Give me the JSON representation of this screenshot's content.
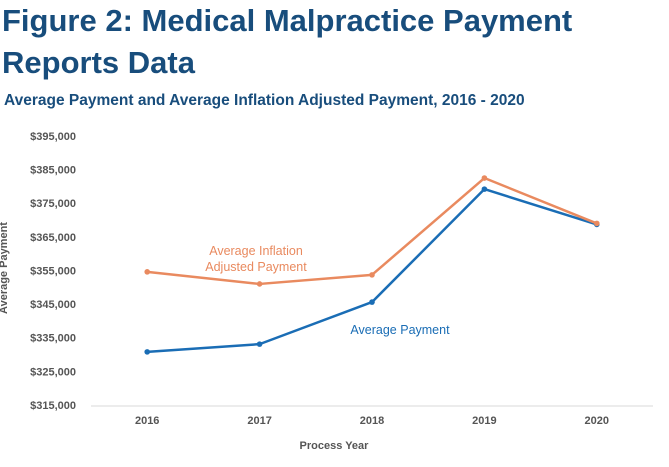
{
  "chart_data": {
    "type": "line",
    "title": "Figure 2: Medical Malpractice Payment Reports Data",
    "subtitle": "Average Payment and Average Inflation Adjusted Payment, 2016 - 2020",
    "x_label": "Process Year",
    "y_label": "Average Payment",
    "categories": [
      "2016",
      "2017",
      "2018",
      "2019",
      "2020"
    ],
    "series": [
      {
        "name": "Average Payment",
        "color": "#1a6db5",
        "values": [
          331100,
          333400,
          345900,
          379500,
          369000
        ]
      },
      {
        "name": "Average Inflation Adjusted Payment",
        "color": "#e98a5f",
        "values": [
          354900,
          351300,
          354000,
          382800,
          369300
        ]
      }
    ],
    "ylim": [
      315000,
      395000
    ],
    "yticks": [
      {
        "value": 315000,
        "label": "$315,000"
      },
      {
        "value": 325000,
        "label": "$325,000"
      },
      {
        "value": 335000,
        "label": "$335,000"
      },
      {
        "value": 345000,
        "label": "$345,000"
      },
      {
        "value": 355000,
        "label": "$355,000"
      },
      {
        "value": 365000,
        "label": "$365,000"
      },
      {
        "value": 375000,
        "label": "$375,000"
      },
      {
        "value": 385000,
        "label": "$385,000"
      },
      {
        "value": 395000,
        "label": "$395,000"
      }
    ],
    "grid": false
  }
}
